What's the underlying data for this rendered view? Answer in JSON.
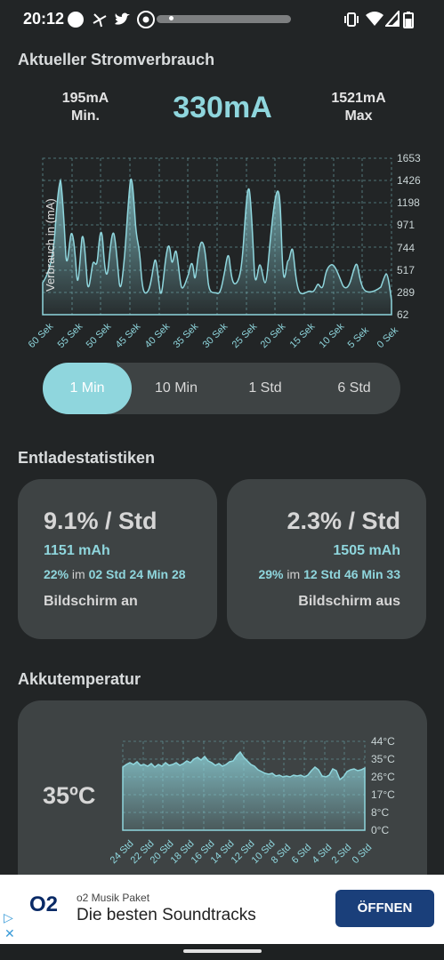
{
  "status_bar": {
    "time": "20:12",
    "left_icons": [
      "circle-icon",
      "pinwheel-icon",
      "twitter-icon",
      "chrome-icon"
    ],
    "right_icons": [
      "vibrate-icon",
      "wifi-icon",
      "signal-icon",
      "battery-icon"
    ]
  },
  "current": {
    "title": "Aktueller Stromverbrauch",
    "min_value": "195mA",
    "min_label": "Min.",
    "current_value": "330mA",
    "max_value": "1521mA",
    "max_label": "Max"
  },
  "current_chart": {
    "ylabel": "Verbrauch in (mA)",
    "y_ticks": [
      "1653",
      "1426",
      "1198",
      "971",
      "744",
      "517",
      "289",
      "62"
    ],
    "x_ticks": [
      "60 Sek",
      "55 Sek",
      "50 Sek",
      "45 Sek",
      "40 Sek",
      "35 Sek",
      "30 Sek",
      "25 Sek",
      "20 Sek",
      "15 Sek",
      "10 Sek",
      "5 Sek",
      "0 Sek"
    ]
  },
  "range_tabs": [
    {
      "label": "1 Min",
      "active": true
    },
    {
      "label": "10 Min",
      "active": false
    },
    {
      "label": "1 Std",
      "active": false
    },
    {
      "label": "6 Std",
      "active": false
    }
  ],
  "discharge": {
    "title": "Entladestatistiken",
    "screen_on": {
      "rate": "9.1% / Std",
      "mah": "1151 mAh",
      "percent": "22%",
      "in_word": "im",
      "duration": "02 Std 24 Min 28",
      "label": "Bildschirm an"
    },
    "screen_off": {
      "rate": "2.3% / Std",
      "mah": "1505 mAh",
      "percent": "29%",
      "in_word": "im",
      "duration": "12 Std 46 Min 33",
      "label": "Bildschirm aus"
    }
  },
  "temperature": {
    "title": "Akkutemperatur",
    "value": "35ºC",
    "y_ticks": [
      "44°C",
      "35°C",
      "26°C",
      "17°C",
      "8°C",
      "0°C"
    ],
    "x_ticks": [
      "24 Std",
      "22 Std",
      "20 Std",
      "18 Std",
      "16 Std",
      "14 Std",
      "12 Std",
      "10 Std",
      "8 Std",
      "6 Std",
      "4 Std",
      "2 Std",
      "0 Std"
    ]
  },
  "ad": {
    "logo": "O2",
    "subtitle": "o2 Musik Paket",
    "title": "Die besten Soundtracks",
    "button": "ÖFFNEN"
  },
  "colors": {
    "accent": "#8fd6dd",
    "background": "#222526",
    "card": "#3e4344",
    "ad_button": "#1a3f7a"
  }
}
